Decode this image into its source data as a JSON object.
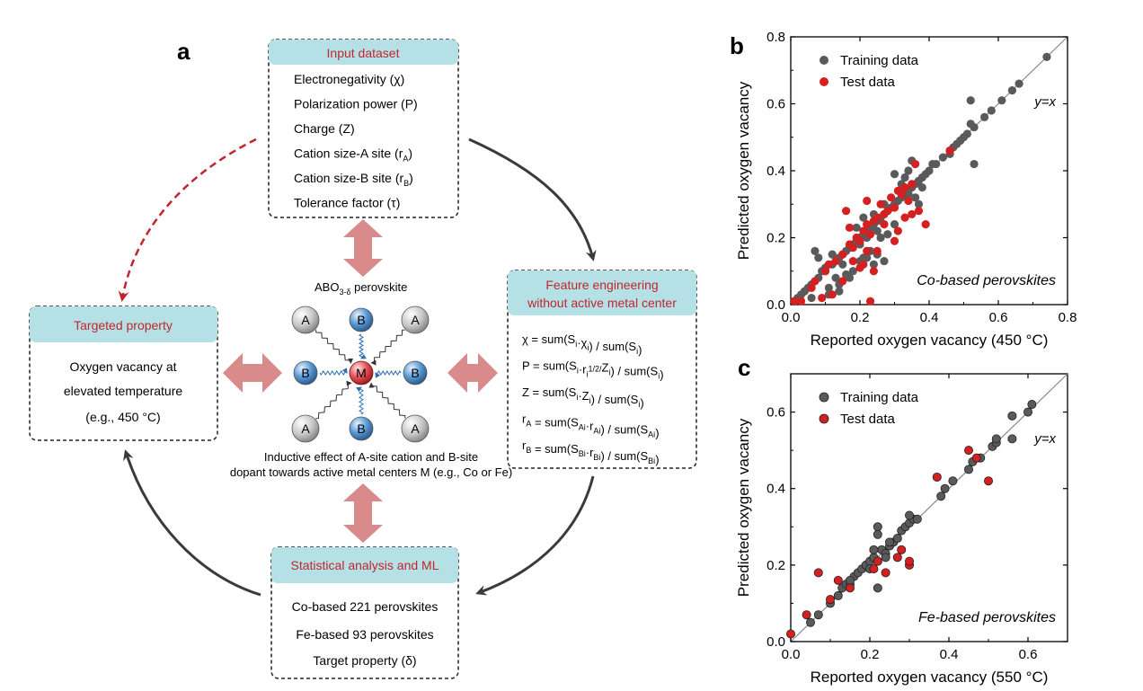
{
  "panel_a": {
    "label": "a",
    "input_box": {
      "title": "Input dataset",
      "items": [
        {
          "main": "Electronegativity (χ)",
          "sub": ""
        },
        {
          "main": "Polarization power (P)",
          "sub": ""
        },
        {
          "main": "Charge (Z)",
          "sub": ""
        },
        {
          "main": "Cation size-A site (r",
          "sub": "A",
          "after": ")"
        },
        {
          "main": "Cation size-B site (r",
          "sub": "B",
          "after": ")"
        },
        {
          "main": "Tolerance factor (τ)",
          "sub": ""
        }
      ]
    },
    "feature_box": {
      "title_lines": [
        "Feature engineering",
        "without active metal center"
      ],
      "formulas": [
        "χ = sum(S_i·χ_i) / sum(S_i)",
        "P = sum(S_i·r_i^1/2/Z_i) / sum(S_i)",
        "Z = sum(S_i·Z_i) / sum(S_i)",
        "r_A = sum(S_Ai·r_Ai) / sum(S_Ai)",
        "r_B = sum(S_Bi·r_Bi) / sum(S_Bi)"
      ]
    },
    "target_box": {
      "title": "Targeted property",
      "lines": [
        "Oxygen vacancy at",
        "elevated temperature",
        "(e.g., 450 °C)"
      ]
    },
    "stats_box": {
      "title": "Statistical analysis and ML",
      "lines": [
        "Co-based 221 perovskites",
        "Fe-based 93 perovskites",
        "Target property (δ)"
      ]
    },
    "center": {
      "perovskite_label": "ABO",
      "perovskite_sub": "3-δ",
      "perovskite_after": " perovskite",
      "caption_lines": [
        "Inductive effect of A-site cation and B-site",
        "dopant towards active metal centers M (e.g., Co or Fe)"
      ],
      "atom_A": "A",
      "atom_B": "B",
      "atom_M": "M"
    },
    "colors": {
      "header_bg": "#b5e1e6",
      "header_text": "#c0262d",
      "double_arrow": "#d98a8a",
      "curve_arrow": "#3a3a3a",
      "dashed_arrow": "#c0262d"
    }
  },
  "panel_b": {
    "label": "b",
    "annotation": "Co-based perovskites",
    "identity_label": "y=x"
  },
  "panel_c": {
    "label": "c",
    "annotation": "Fe-based perovskites",
    "identity_label": "y=x"
  },
  "chart_data": [
    {
      "type": "scatter",
      "panel": "b",
      "xlabel": "Reported oxygen vacancy (450 °C)",
      "ylabel": "Predicted oxygen vacancy",
      "xlim": [
        0,
        0.8
      ],
      "ylim": [
        0,
        0.8
      ],
      "xticks": [
        "0.0",
        "0.2",
        "0.4",
        "0.6",
        "0.8"
      ],
      "yticks": [
        "0.0",
        "0.2",
        "0.4",
        "0.6",
        "0.8"
      ],
      "legend_position": "top-left",
      "series": [
        {
          "name": "Training data",
          "color": "#5a5a5a",
          "points": [
            [
              0.01,
              0.01
            ],
            [
              0.02,
              0.02
            ],
            [
              0.03,
              0.03
            ],
            [
              0.04,
              0.04
            ],
            [
              0.05,
              0.05
            ],
            [
              0.06,
              0.06
            ],
            [
              0.08,
              0.08
            ],
            [
              0.09,
              0.1
            ],
            [
              0.1,
              0.1
            ],
            [
              0.12,
              0.12
            ],
            [
              0.14,
              0.14
            ],
            [
              0.15,
              0.15
            ],
            [
              0.16,
              0.16
            ],
            [
              0.17,
              0.17
            ],
            [
              0.18,
              0.18
            ],
            [
              0.19,
              0.19
            ],
            [
              0.2,
              0.2
            ],
            [
              0.21,
              0.21
            ],
            [
              0.22,
              0.22
            ],
            [
              0.23,
              0.23
            ],
            [
              0.24,
              0.24
            ],
            [
              0.25,
              0.25
            ],
            [
              0.26,
              0.26
            ],
            [
              0.27,
              0.27
            ],
            [
              0.28,
              0.28
            ],
            [
              0.29,
              0.29
            ],
            [
              0.3,
              0.3
            ],
            [
              0.31,
              0.31
            ],
            [
              0.32,
              0.32
            ],
            [
              0.33,
              0.33
            ],
            [
              0.34,
              0.34
            ],
            [
              0.35,
              0.35
            ],
            [
              0.36,
              0.36
            ],
            [
              0.37,
              0.37
            ],
            [
              0.38,
              0.38
            ],
            [
              0.39,
              0.39
            ],
            [
              0.4,
              0.4
            ],
            [
              0.42,
              0.42
            ],
            [
              0.44,
              0.44
            ],
            [
              0.46,
              0.46
            ],
            [
              0.47,
              0.47
            ],
            [
              0.48,
              0.48
            ],
            [
              0.49,
              0.49
            ],
            [
              0.5,
              0.5
            ],
            [
              0.51,
              0.51
            ],
            [
              0.53,
              0.53
            ],
            [
              0.56,
              0.56
            ],
            [
              0.58,
              0.58
            ],
            [
              0.61,
              0.61
            ],
            [
              0.64,
              0.64
            ],
            [
              0.66,
              0.66
            ],
            [
              0.74,
              0.74
            ],
            [
              0.11,
              0.05
            ],
            [
              0.13,
              0.08
            ],
            [
              0.07,
              0.16
            ],
            [
              0.12,
              0.15
            ],
            [
              0.15,
              0.12
            ],
            [
              0.17,
              0.08
            ],
            [
              0.18,
              0.1
            ],
            [
              0.2,
              0.13
            ],
            [
              0.2,
              0.18
            ],
            [
              0.21,
              0.26
            ],
            [
              0.22,
              0.2
            ],
            [
              0.23,
              0.16
            ],
            [
              0.24,
              0.12
            ],
            [
              0.22,
              0.14
            ],
            [
              0.24,
              0.27
            ],
            [
              0.25,
              0.22
            ],
            [
              0.26,
              0.2
            ],
            [
              0.27,
              0.3
            ],
            [
              0.3,
              0.39
            ],
            [
              0.32,
              0.36
            ],
            [
              0.33,
              0.38
            ],
            [
              0.34,
              0.4
            ],
            [
              0.35,
              0.43
            ],
            [
              0.36,
              0.32
            ],
            [
              0.37,
              0.3
            ],
            [
              0.38,
              0.35
            ],
            [
              0.34,
              0.33
            ],
            [
              0.3,
              0.24
            ],
            [
              0.28,
              0.21
            ],
            [
              0.19,
              0.23
            ],
            [
              0.21,
              0.14
            ],
            [
              0.25,
              0.15
            ],
            [
              0.27,
              0.13
            ],
            [
              0.14,
              0.06
            ],
            [
              0.16,
              0.09
            ],
            [
              0.08,
              0.14
            ],
            [
              0.1,
              0.11
            ],
            [
              0.06,
              0.02
            ],
            [
              0.52,
              0.61
            ],
            [
              0.52,
              0.54
            ],
            [
              0.53,
              0.42
            ],
            [
              0.46,
              0.45
            ],
            [
              0.41,
              0.42
            ],
            [
              0.14,
              0.04
            ],
            [
              0.11,
              0.03
            ]
          ]
        },
        {
          "name": "Test data",
          "color": "#d42020",
          "points": [
            [
              0.01,
              0.01
            ],
            [
              0.03,
              0.01
            ],
            [
              0.06,
              0.05
            ],
            [
              0.07,
              0.07
            ],
            [
              0.1,
              0.1
            ],
            [
              0.11,
              0.12
            ],
            [
              0.13,
              0.13
            ],
            [
              0.15,
              0.15
            ],
            [
              0.16,
              0.28
            ],
            [
              0.17,
              0.18
            ],
            [
              0.18,
              0.17
            ],
            [
              0.19,
              0.2
            ],
            [
              0.2,
              0.19
            ],
            [
              0.21,
              0.22
            ],
            [
              0.22,
              0.24
            ],
            [
              0.23,
              0.21
            ],
            [
              0.24,
              0.25
            ],
            [
              0.25,
              0.26
            ],
            [
              0.26,
              0.3
            ],
            [
              0.27,
              0.27
            ],
            [
              0.28,
              0.28
            ],
            [
              0.29,
              0.32
            ],
            [
              0.3,
              0.29
            ],
            [
              0.31,
              0.34
            ],
            [
              0.32,
              0.33
            ],
            [
              0.33,
              0.35
            ],
            [
              0.34,
              0.31
            ],
            [
              0.35,
              0.36
            ],
            [
              0.36,
              0.42
            ],
            [
              0.37,
              0.28
            ],
            [
              0.39,
              0.24
            ],
            [
              0.3,
              0.19
            ],
            [
              0.22,
              0.16
            ],
            [
              0.2,
              0.11
            ],
            [
              0.18,
              0.13
            ],
            [
              0.15,
              0.07
            ],
            [
              0.09,
              0.02
            ],
            [
              0.12,
              0.03
            ],
            [
              0.17,
              0.23
            ],
            [
              0.22,
              0.31
            ],
            [
              0.21,
              0.12
            ],
            [
              0.24,
              0.1
            ],
            [
              0.25,
              0.16
            ],
            [
              0.27,
              0.24
            ],
            [
              0.31,
              0.22
            ],
            [
              0.33,
              0.26
            ],
            [
              0.35,
              0.27
            ],
            [
              0.46,
              0.46
            ],
            [
              0.23,
              0.01
            ]
          ]
        }
      ]
    },
    {
      "type": "scatter",
      "panel": "c",
      "xlabel": "Reported oxygen vacancy (550 °C)",
      "ylabel": "Predicted oxygen vacancy",
      "xlim": [
        0,
        0.7
      ],
      "ylim": [
        0,
        0.7
      ],
      "xticks": [
        "0.0",
        "0.2",
        "0.4",
        "0.6"
      ],
      "yticks": [
        "0.0",
        "0.2",
        "0.4",
        "0.6"
      ],
      "legend_position": "top-left",
      "series": [
        {
          "name": "Training data",
          "color": "#5a5a5a",
          "points": [
            [
              0.05,
              0.05
            ],
            [
              0.07,
              0.07
            ],
            [
              0.1,
              0.1
            ],
            [
              0.12,
              0.12
            ],
            [
              0.13,
              0.14
            ],
            [
              0.14,
              0.15
            ],
            [
              0.15,
              0.15
            ],
            [
              0.16,
              0.17
            ],
            [
              0.17,
              0.18
            ],
            [
              0.18,
              0.19
            ],
            [
              0.19,
              0.2
            ],
            [
              0.2,
              0.21
            ],
            [
              0.21,
              0.22
            ],
            [
              0.22,
              0.21
            ],
            [
              0.23,
              0.24
            ],
            [
              0.24,
              0.23
            ],
            [
              0.25,
              0.25
            ],
            [
              0.26,
              0.26
            ],
            [
              0.27,
              0.27
            ],
            [
              0.28,
              0.29
            ],
            [
              0.29,
              0.3
            ],
            [
              0.3,
              0.31
            ],
            [
              0.31,
              0.32
            ],
            [
              0.32,
              0.32
            ],
            [
              0.3,
              0.33
            ],
            [
              0.38,
              0.38
            ],
            [
              0.39,
              0.4
            ],
            [
              0.41,
              0.42
            ],
            [
              0.45,
              0.45
            ],
            [
              0.46,
              0.47
            ],
            [
              0.48,
              0.48
            ],
            [
              0.51,
              0.51
            ],
            [
              0.52,
              0.52
            ],
            [
              0.52,
              0.53
            ],
            [
              0.56,
              0.53
            ],
            [
              0.56,
              0.59
            ],
            [
              0.6,
              0.6
            ],
            [
              0.61,
              0.62
            ],
            [
              0.22,
              0.3
            ],
            [
              0.22,
              0.28
            ],
            [
              0.25,
              0.26
            ],
            [
              0.21,
              0.24
            ],
            [
              0.2,
              0.19
            ],
            [
              0.22,
              0.14
            ],
            [
              0.15,
              0.16
            ],
            [
              0.24,
              0.22
            ]
          ]
        },
        {
          "name": "Test data",
          "color": "#d42020",
          "points": [
            [
              0.0,
              0.02
            ],
            [
              0.04,
              0.07
            ],
            [
              0.07,
              0.18
            ],
            [
              0.1,
              0.11
            ],
            [
              0.12,
              0.16
            ],
            [
              0.15,
              0.14
            ],
            [
              0.21,
              0.19
            ],
            [
              0.22,
              0.21
            ],
            [
              0.24,
              0.18
            ],
            [
              0.27,
              0.22
            ],
            [
              0.28,
              0.24
            ],
            [
              0.3,
              0.2
            ],
            [
              0.3,
              0.21
            ],
            [
              0.37,
              0.43
            ],
            [
              0.45,
              0.5
            ],
            [
              0.47,
              0.48
            ],
            [
              0.5,
              0.42
            ]
          ]
        }
      ]
    }
  ]
}
